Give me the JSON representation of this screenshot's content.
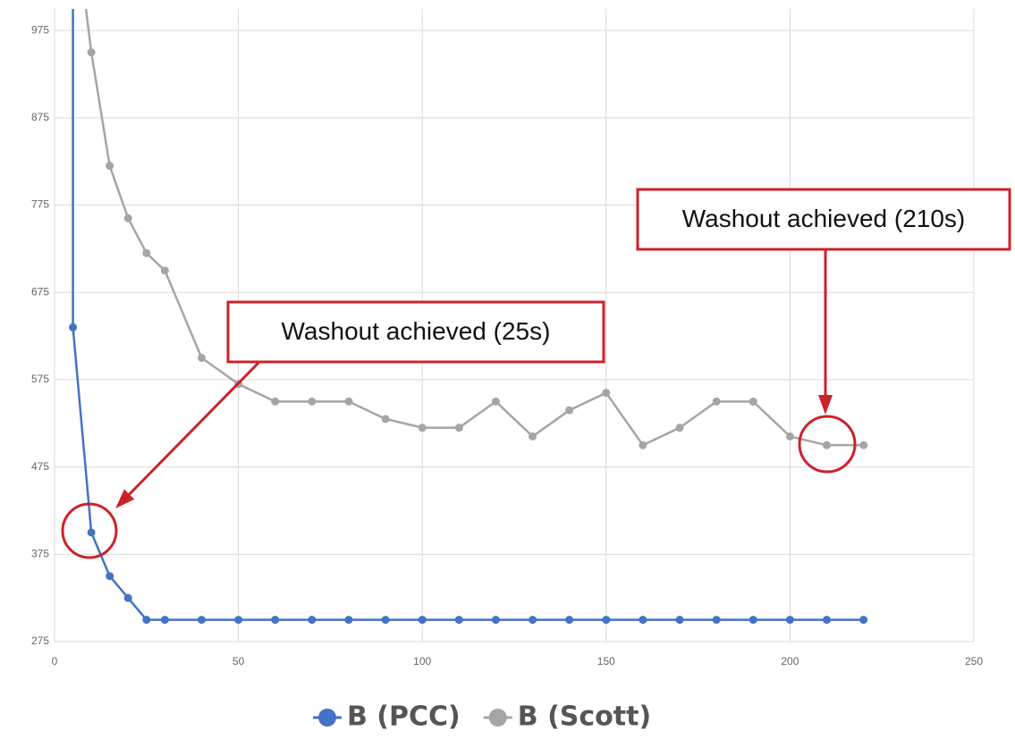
{
  "chart_data": {
    "type": "line",
    "x_scale": "linear",
    "xlim": [
      0,
      250
    ],
    "xticks": [
      0,
      50,
      100,
      150,
      200,
      250
    ],
    "ylim": [
      275,
      1000
    ],
    "yticks": [
      275,
      375,
      475,
      575,
      675,
      775,
      875,
      975
    ],
    "grid": true,
    "legend": "bottom",
    "series": [
      {
        "name": "B (PCC)",
        "color": "#4472c4",
        "x": [
          5,
          5,
          10,
          15,
          20,
          25,
          30,
          40,
          50,
          60,
          70,
          80,
          90,
          100,
          110,
          120,
          130,
          140,
          150,
          160,
          170,
          180,
          190,
          200,
          210,
          220
        ],
        "values": [
          1100,
          635,
          400,
          350,
          325,
          300,
          300,
          300,
          300,
          300,
          300,
          300,
          300,
          300,
          300,
          300,
          300,
          300,
          300,
          300,
          300,
          300,
          300,
          300,
          300,
          300
        ]
      },
      {
        "name": "B (Scott)",
        "color": "#a5a5a5",
        "x": [
          5,
          10,
          15,
          20,
          25,
          30,
          40,
          50,
          60,
          70,
          80,
          90,
          100,
          110,
          120,
          130,
          140,
          150,
          160,
          170,
          180,
          190,
          200,
          210,
          220
        ],
        "values": [
          1120,
          950,
          820,
          760,
          720,
          700,
          600,
          570,
          550,
          550,
          550,
          530,
          520,
          520,
          550,
          510,
          540,
          560,
          500,
          520,
          550,
          550,
          510,
          500,
          500
        ]
      }
    ],
    "annotations": [
      "Washout achieved (25s)",
      "Washout achieved (210s)"
    ]
  }
}
